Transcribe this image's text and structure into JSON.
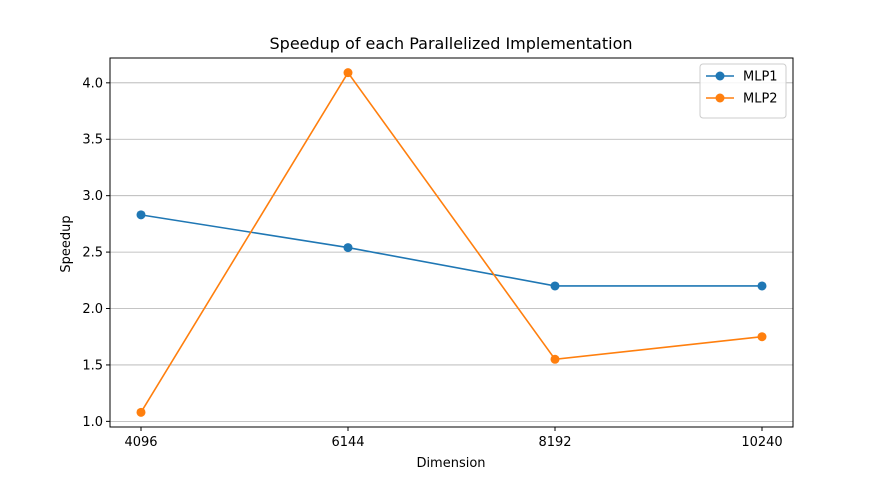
{
  "chart_data": {
    "type": "line",
    "title": "Speedup of each Parallelized Implementation",
    "xlabel": "Dimension",
    "ylabel": "Speedup",
    "categories": [
      "4096",
      "6144",
      "8192",
      "10240"
    ],
    "series": [
      {
        "name": "MLP1",
        "color": "#1f77b4",
        "values": [
          2.83,
          2.54,
          2.2,
          2.2
        ]
      },
      {
        "name": "MLP2",
        "color": "#ff7f0e",
        "values": [
          1.08,
          4.09,
          1.55,
          1.75
        ]
      }
    ],
    "ylim": [
      0.95,
      4.22
    ],
    "yticks": [
      "1.0",
      "1.5",
      "2.0",
      "2.5",
      "3.0",
      "3.5",
      "4.0"
    ],
    "grid": "y-axis horizontal",
    "legend": "top-right",
    "marker": "circle"
  }
}
